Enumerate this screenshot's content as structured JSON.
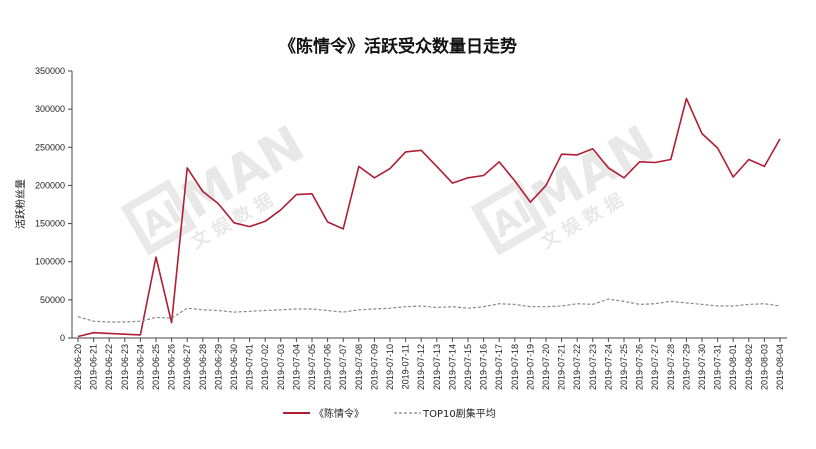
{
  "chart_data": {
    "type": "line",
    "title": "《陈情令》活跃受众数量日走势",
    "ylabel": "活跃粉丝量",
    "xlabel": "",
    "ylim": [
      0,
      350000
    ],
    "y_ticks": [
      "0",
      "50000",
      "100000",
      "150000",
      "200000",
      "250000",
      "300000",
      "350000"
    ],
    "grid": false,
    "legend_position": "bottom",
    "categories": [
      "2019-06-20",
      "2019-06-21",
      "2019-06-22",
      "2019-06-23",
      "2019-06-24",
      "2019-06-25",
      "2019-06-26",
      "2019-06-27",
      "2019-06-28",
      "2019-06-29",
      "2019-06-30",
      "2019-07-01",
      "2019-07-02",
      "2019-07-03",
      "2019-07-04",
      "2019-07-05",
      "2019-07-06",
      "2019-07-07",
      "2019-07-08",
      "2019-07-09",
      "2019-07-10",
      "2019-07-11",
      "2019-07-12",
      "2019-07-13",
      "2019-07-14",
      "2019-07-15",
      "2019-07-16",
      "2019-07-17",
      "2019-07-18",
      "2019-07-19",
      "2019-07-20",
      "2019-07-21",
      "2019-07-22",
      "2019-07-23",
      "2019-07-24",
      "2019-07-25",
      "2019-07-26",
      "2019-07-27",
      "2019-07-28",
      "2019-07-29",
      "2019-07-30",
      "2019-07-31",
      "2019-08-01",
      "2019-08-02",
      "2019-08-03",
      "2019-08-04"
    ],
    "series": [
      {
        "name": "《陈情令》",
        "color": "#b01e35",
        "style": "solid",
        "values": [
          2000,
          7000,
          6000,
          5000,
          4000,
          106000,
          20000,
          223000,
          192000,
          176000,
          151000,
          146000,
          153000,
          168000,
          188000,
          189000,
          152000,
          143000,
          225000,
          210000,
          222000,
          244000,
          246000,
          225000,
          203000,
          210000,
          213000,
          231000,
          206000,
          178000,
          200000,
          241000,
          240000,
          248000,
          223000,
          210000,
          231000,
          230000,
          234000,
          314000,
          268000,
          249000,
          211000,
          234000,
          225000,
          261000
        ]
      },
      {
        "name": "TOP10剧集平均",
        "color": "#888888",
        "style": "dashed",
        "values": [
          28000,
          22000,
          21000,
          21000,
          22000,
          27000,
          26000,
          39000,
          37000,
          36000,
          34000,
          35000,
          36000,
          37000,
          38000,
          38000,
          36000,
          34000,
          37000,
          38000,
          39000,
          41000,
          42000,
          40000,
          41000,
          39000,
          41000,
          45000,
          44000,
          41000,
          41000,
          42000,
          45000,
          44000,
          51000,
          48000,
          44000,
          45000,
          48000,
          46000,
          44000,
          42000,
          42000,
          44000,
          45000,
          42000
        ]
      }
    ]
  },
  "watermark": {
    "brand": "MAN",
    "mark": "AI",
    "subtitle": "文 娱 数 据"
  }
}
